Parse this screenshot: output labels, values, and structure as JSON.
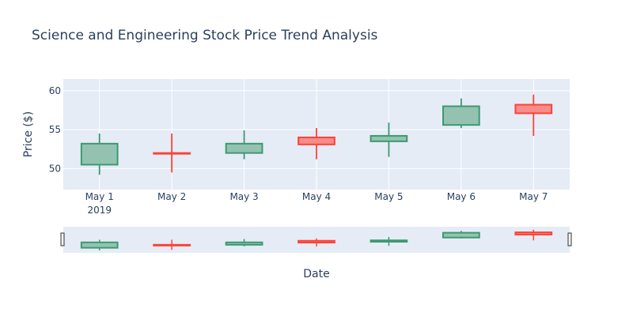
{
  "chart_data": {
    "type": "candlestick",
    "title": "Science and Engineering Stock Price Trend Analysis",
    "xlabel": "Date",
    "ylabel": "Price ($)",
    "x_tick_labels": [
      "May 1",
      "May 2",
      "May 3",
      "May 4",
      "May 5",
      "May 6",
      "May 7"
    ],
    "x_tick_year": "2019",
    "ylim": [
      47.3,
      61.5
    ],
    "y_ticks": [
      50,
      55,
      60
    ],
    "grid": true,
    "legend": "none",
    "rangeslider": true,
    "colors": {
      "increasing": "#3d9970",
      "increasing_fill": "#93c3b0",
      "decreasing": "#ff4136",
      "decreasing_fill": "#f78d89",
      "plot_bg": "#e5ecf6",
      "grid": "#ffffff",
      "text": "#2a3f5f"
    },
    "candles": [
      {
        "date": "May 1",
        "open": 50.5,
        "high": 54.5,
        "low": 49.2,
        "close": 53.2
      },
      {
        "date": "May 2",
        "open": 52.0,
        "high": 54.5,
        "low": 49.5,
        "close": 51.9
      },
      {
        "date": "May 3",
        "open": 52.0,
        "high": 54.9,
        "low": 51.2,
        "close": 53.2
      },
      {
        "date": "May 4",
        "open": 54.0,
        "high": 55.2,
        "low": 51.2,
        "close": 53.1
      },
      {
        "date": "May 5",
        "open": 53.5,
        "high": 55.9,
        "low": 51.5,
        "close": 54.2
      },
      {
        "date": "May 6",
        "open": 55.6,
        "high": 59.0,
        "low": 55.2,
        "close": 58.0
      },
      {
        "date": "May 7",
        "open": 58.2,
        "high": 59.5,
        "low": 54.2,
        "close": 57.1
      }
    ]
  }
}
